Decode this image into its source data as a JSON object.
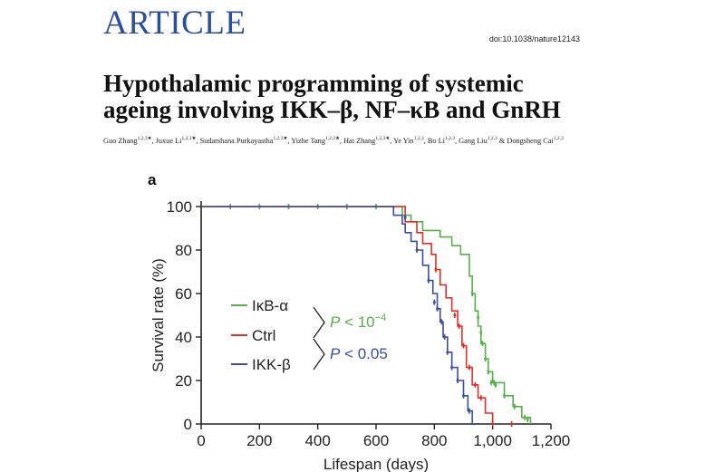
{
  "header": {
    "section": "ARTICLE",
    "doi": "doi:10.1038/nature12143"
  },
  "article": {
    "title_lines": [
      "Hypothalamic programming of systemic",
      "ageing involving IKK–β, NF–κB and GnRH"
    ],
    "authors": [
      {
        "name": "Guo Zhang",
        "aff": "1,2,3★"
      },
      {
        "name": "Juxue Li",
        "aff": "1,2,3★"
      },
      {
        "name": "Sudarshana Purkayastha",
        "aff": "1,2,3★"
      },
      {
        "name": "Yizhe Tang",
        "aff": "1,2,3★"
      },
      {
        "name": "Hai Zhang",
        "aff": "1,2,3★"
      },
      {
        "name": "Ye Yin",
        "aff": "1,2,3"
      },
      {
        "name": "Bo Li",
        "aff": "1,2,3"
      },
      {
        "name": "Gang Liu",
        "aff": "1,2,3"
      },
      {
        "name": "Dongsheng Cai",
        "aff": "1,2,3"
      }
    ]
  },
  "figure": {
    "panel_label": "a",
    "legend": [
      "IκB-α",
      "Ctrl",
      "IKK-β"
    ],
    "pvalues": [
      {
        "prefix": "P < 10",
        "exponent": "−4",
        "color": "#56b04a"
      },
      {
        "prefix": "P < 0.05",
        "exponent": "",
        "color": "#3a4fa0"
      }
    ]
  },
  "chart_data": {
    "type": "line",
    "xlabel": "Lifespan (days)",
    "ylabel": "Survival rate (%)",
    "xlim": [
      0,
      1200
    ],
    "ylim": [
      0,
      100
    ],
    "xticks": [
      0,
      200,
      400,
      600,
      800,
      1000,
      1200
    ],
    "xtick_labels": [
      "0",
      "200",
      "400",
      "600",
      "800",
      "1,000",
      "1,200"
    ],
    "yticks": [
      0,
      20,
      40,
      60,
      80,
      100
    ],
    "ytick_labels": [
      "0",
      "20",
      "40",
      "60",
      "80",
      "100"
    ],
    "legend_position": "center",
    "series": [
      {
        "name": "IκB-α",
        "color": "#56b04a",
        "x": [
          0,
          690,
          720,
          760,
          820,
          860,
          890,
          920,
          930,
          940,
          950,
          960,
          975,
          985,
          1000,
          1040,
          1070,
          1100,
          1130
        ],
        "y": [
          100,
          96,
          93,
          89,
          86,
          82,
          78,
          68,
          60,
          52,
          45,
          37,
          30,
          24,
          19,
          13,
          8,
          3,
          0
        ],
        "censor_x": [
          100,
          200,
          300,
          400,
          500,
          600,
          930,
          950,
          960,
          965,
          975,
          985,
          995,
          1005,
          1010,
          1040,
          1075,
          1110,
          1120
        ],
        "censor_y": [
          100,
          100,
          100,
          100,
          100,
          100,
          60,
          49,
          42,
          37,
          30,
          24,
          19,
          19,
          18,
          13,
          8,
          3,
          2
        ]
      },
      {
        "name": "Ctrl",
        "color": "#e0302a",
        "x": [
          0,
          700,
          740,
          760,
          790,
          805,
          820,
          840,
          860,
          880,
          895,
          910,
          930,
          950,
          975,
          1000
        ],
        "y": [
          100,
          93,
          88,
          83,
          78,
          71,
          64,
          58,
          52,
          45,
          36,
          26,
          18,
          12,
          5,
          0
        ],
        "censor_x": [
          805,
          870,
          885,
          900,
          920,
          940,
          960,
          1000,
          1065
        ],
        "censor_y": [
          71,
          50,
          45,
          36,
          26,
          18,
          12,
          0,
          0
        ]
      },
      {
        "name": "IKK-β",
        "color": "#3a4fa0",
        "x": [
          0,
          660,
          690,
          700,
          720,
          740,
          760,
          780,
          795,
          810,
          820,
          830,
          845,
          860,
          880,
          900,
          915,
          930
        ],
        "y": [
          100,
          96,
          92,
          88,
          84,
          80,
          73,
          66,
          60,
          53,
          47,
          40,
          33,
          26,
          20,
          13,
          6,
          0
        ],
        "censor_x": [
          700,
          740,
          780,
          800,
          810,
          825,
          835,
          845,
          860,
          880,
          900,
          920
        ],
        "censor_y": [
          95,
          80,
          66,
          56,
          53,
          47,
          40,
          33,
          26,
          20,
          13,
          6
        ]
      }
    ]
  }
}
